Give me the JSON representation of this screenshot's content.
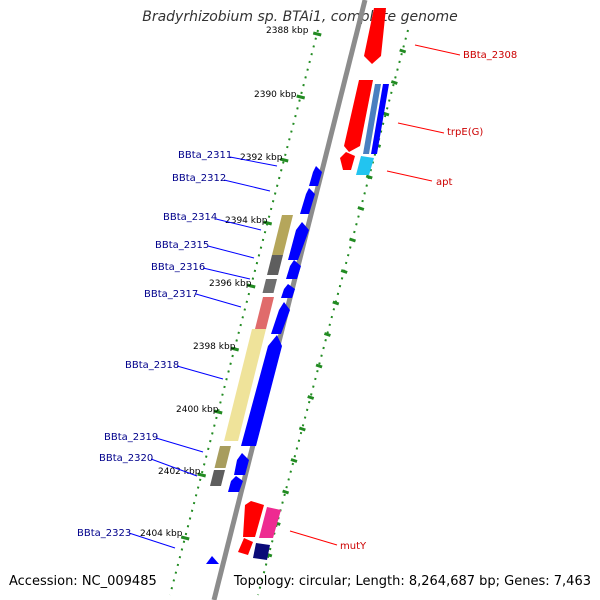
{
  "title": "Bradyrhizobium sp. BTAi1, complete genome",
  "footer": {
    "accession": "Accession: NC_009485",
    "summary": "Topology: circular; Length: 8,264,687 bp; Genes: 7,463"
  },
  "scale": {
    "ticks": [
      {
        "label": "2388 kbp",
        "kbp": 2388
      },
      {
        "label": "2390 kbp",
        "kbp": 2390
      },
      {
        "label": "2392 kbp",
        "kbp": 2392
      },
      {
        "label": "2394 kbp",
        "kbp": 2394
      },
      {
        "label": "2396 kbp",
        "kbp": 2396
      },
      {
        "label": "2398 kbp",
        "kbp": 2398
      },
      {
        "label": "2400 kbp",
        "kbp": 2400
      },
      {
        "label": "2402 kbp",
        "kbp": 2402
      },
      {
        "label": "2404 kbp",
        "kbp": 2404
      }
    ]
  },
  "genes_left": [
    {
      "label": "BBta_2311"
    },
    {
      "label": "BBta_2312"
    },
    {
      "label": "BBta_2314"
    },
    {
      "label": "BBta_2315"
    },
    {
      "label": "BBta_2316"
    },
    {
      "label": "BBta_2317"
    },
    {
      "label": "BBta_2318"
    },
    {
      "label": "BBta_2319"
    },
    {
      "label": "BBta_2320"
    },
    {
      "label": "BBta_2323"
    }
  ],
  "genes_right": [
    {
      "label": "BBta_2308"
    },
    {
      "label": "trpE(G)"
    },
    {
      "label": "apt"
    },
    {
      "label": "mutY"
    }
  ],
  "colors": {
    "backbone": "#8c8c8c",
    "tick": "#228b22",
    "forward_cds": "#ff0000",
    "reverse_cds": "#0000ff",
    "label_left": "#00008b",
    "label_right": "#cc0000"
  }
}
